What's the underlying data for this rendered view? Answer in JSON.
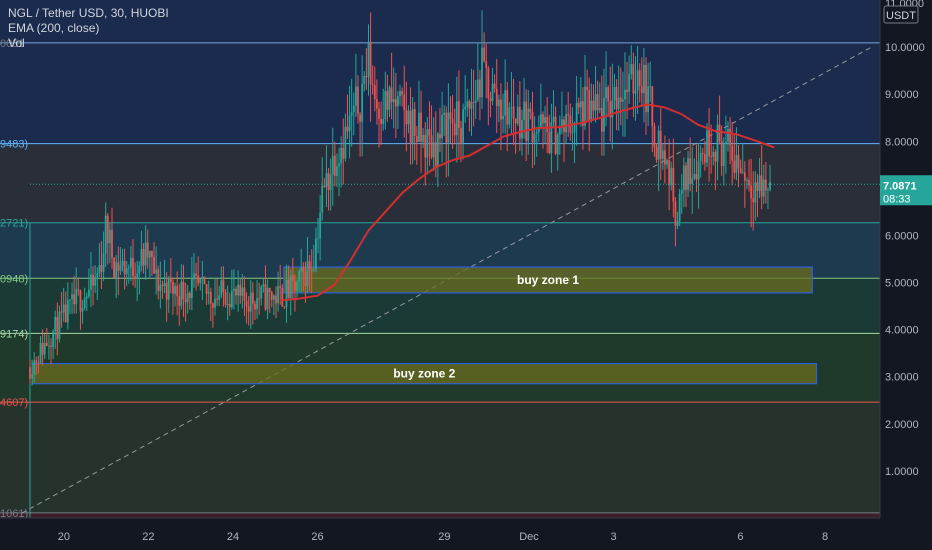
{
  "header": {
    "symbol_line": "NGL / Tether USD, 30, HUOBI",
    "indicator_line": "EMA (200, close)",
    "volume_label": "Vol"
  },
  "price_axis": {
    "currency": "USDT",
    "top_label": "11.0000",
    "ticks": [
      "10.0000",
      "9.0000",
      "8.0000",
      "7.0000",
      "6.0000",
      "5.0000",
      "4.0000",
      "3.0000",
      "2.0000",
      "1.0000"
    ],
    "tick_values": [
      10,
      9,
      8,
      7,
      6,
      5,
      4,
      3,
      2,
      1
    ],
    "current_price": "7.0871",
    "countdown": "08:33",
    "current_value": 7.0871
  },
  "time_axis": {
    "labels": [
      "20",
      "22",
      "24",
      "26",
      "29",
      "Dec",
      "3",
      "6",
      "8"
    ],
    "positions": [
      0.5,
      2.5,
      4.5,
      6.5,
      9.5,
      11.5,
      13.5,
      16.5,
      18.5
    ]
  },
  "left_labels": {
    "items": [
      "0051",
      "9483)",
      "2721)",
      "0948)",
      "9174)",
      "4607)",
      "1061)"
    ],
    "values": [
      10.09,
      7.95,
      6.27,
      5.09,
      3.92,
      2.46,
      0.11
    ],
    "colors": [
      "#787b86",
      "#64b5f6",
      "#26a69a",
      "#81c784",
      "#a5d6a7",
      "#ef5350",
      "#787b86"
    ]
  },
  "colors": {
    "background": "#131722",
    "up": "#26a69a",
    "down": "#ef5350",
    "ema": "#d32f2f",
    "zone_fill": "#6b6d1f",
    "zone_border": "#2962ff"
  },
  "chart_data": {
    "type": "candlestick",
    "y_range": [
      0,
      11
    ],
    "x_range": [
      -0.3,
      19.8
    ],
    "fib_levels": [
      {
        "value": 10.09,
        "fill_above": "#1a2b4d",
        "line": "#7aa6d8"
      },
      {
        "value": 7.95,
        "fill_above": "#2a2e39",
        "line": "#64b5f6"
      },
      {
        "value": 6.27,
        "fill_above": "#1e3a4f",
        "line": "#26a69a"
      },
      {
        "value": 5.09,
        "fill_above": "#1b3a36",
        "line": "#81c784"
      },
      {
        "value": 3.92,
        "fill_above": "#1f3a2b",
        "line": "#a5d6a7"
      },
      {
        "value": 2.46,
        "fill_above": "#26322c",
        "line": "#ef5350"
      },
      {
        "value": 0.11,
        "fill_above": "#3a1f26",
        "line": "#787b86"
      }
    ],
    "zones": [
      {
        "label": "buy zone 1",
        "x0": 5.7,
        "x1": 18.2,
        "y_top": 5.33,
        "y_bottom": 4.78
      },
      {
        "label": "buy zone 2",
        "x0": -0.25,
        "x1": 18.3,
        "y_top": 3.28,
        "y_bottom": 2.85
      }
    ],
    "trendline": {
      "x0": -0.5,
      "y0": 0.1,
      "x1": 19.6,
      "y1": 10.0
    },
    "vertical_marker_x": -0.3,
    "price_path": [
      [
        -0.3,
        3.2
      ],
      [
        0.2,
        3.9
      ],
      [
        0.8,
        4.6
      ],
      [
        1.2,
        4.9
      ],
      [
        1.4,
        5.5
      ],
      [
        1.5,
        6.2
      ],
      [
        1.7,
        5.4
      ],
      [
        2.1,
        5.3
      ],
      [
        2.5,
        5.6
      ],
      [
        2.7,
        5.0
      ],
      [
        3.2,
        4.8
      ],
      [
        3.6,
        4.9
      ],
      [
        4.0,
        4.7
      ],
      [
        4.4,
        4.8
      ],
      [
        4.7,
        4.6
      ],
      [
        5.2,
        4.7
      ],
      [
        5.6,
        4.7
      ],
      [
        6.0,
        4.9
      ],
      [
        6.4,
        5.5
      ],
      [
        6.6,
        6.8
      ],
      [
        6.9,
        7.7
      ],
      [
        7.2,
        8.2
      ],
      [
        7.5,
        8.9
      ],
      [
        7.7,
        9.7
      ],
      [
        7.9,
        8.8
      ],
      [
        8.3,
        8.8
      ],
      [
        8.7,
        8.4
      ],
      [
        9.0,
        8.0
      ],
      [
        9.3,
        7.9
      ],
      [
        9.6,
        8.5
      ],
      [
        9.9,
        8.3
      ],
      [
        10.2,
        8.9
      ],
      [
        10.4,
        9.5
      ],
      [
        10.7,
        8.9
      ],
      [
        11.1,
        8.6
      ],
      [
        11.6,
        8.4
      ],
      [
        12.0,
        8.1
      ],
      [
        12.4,
        8.3
      ],
      [
        12.8,
        8.7
      ],
      [
        13.2,
        8.5
      ],
      [
        13.6,
        9.1
      ],
      [
        13.9,
        9.1
      ],
      [
        14.1,
        9.6
      ],
      [
        14.3,
        9.0
      ],
      [
        14.5,
        8.1
      ],
      [
        14.8,
        7.4
      ],
      [
        15.0,
        6.4
      ],
      [
        15.2,
        7.3
      ],
      [
        15.5,
        7.6
      ],
      [
        15.8,
        8.1
      ],
      [
        16.2,
        7.8
      ],
      [
        16.4,
        7.6
      ],
      [
        16.7,
        7.2
      ],
      [
        17.0,
        7.0
      ],
      [
        17.2,
        7.09
      ]
    ],
    "ema_path": [
      [
        5.6,
        4.62
      ],
      [
        6.0,
        4.65
      ],
      [
        6.5,
        4.72
      ],
      [
        6.9,
        4.95
      ],
      [
        7.3,
        5.5
      ],
      [
        7.7,
        6.1
      ],
      [
        8.1,
        6.5
      ],
      [
        8.5,
        6.9
      ],
      [
        8.9,
        7.2
      ],
      [
        9.3,
        7.45
      ],
      [
        9.7,
        7.6
      ],
      [
        10.1,
        7.7
      ],
      [
        10.5,
        7.9
      ],
      [
        10.9,
        8.1
      ],
      [
        11.3,
        8.2
      ],
      [
        11.7,
        8.28
      ],
      [
        12.2,
        8.3
      ],
      [
        12.7,
        8.38
      ],
      [
        13.2,
        8.5
      ],
      [
        13.6,
        8.62
      ],
      [
        14.0,
        8.72
      ],
      [
        14.3,
        8.78
      ],
      [
        14.7,
        8.72
      ],
      [
        15.1,
        8.58
      ],
      [
        15.5,
        8.35
      ],
      [
        15.9,
        8.22
      ],
      [
        16.4,
        8.15
      ],
      [
        16.9,
        8.0
      ],
      [
        17.3,
        7.87
      ]
    ]
  }
}
